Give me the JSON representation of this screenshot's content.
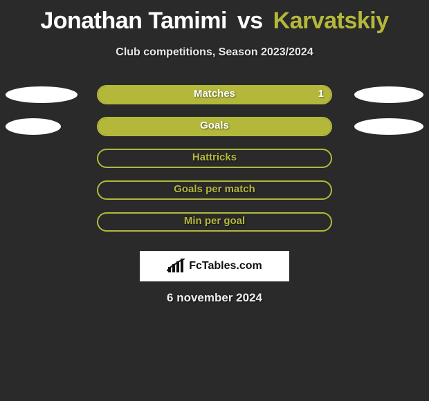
{
  "title": {
    "player1": "Jonathan Tamimi",
    "vs": "vs",
    "player2": "Karvatskiy",
    "player1_color": "#ffffff",
    "player2_color": "#b3b83a"
  },
  "subtitle": "Club competitions, Season 2023/2024",
  "rows": [
    {
      "label": "Matches",
      "value_text": "1",
      "fill_pct": 100,
      "fill_color": "#b3b83a",
      "border_color": "#b3b83a",
      "label_color": "#ffffff",
      "left_ellipse_w": 104,
      "right_ellipse_w": 100,
      "show_left": true,
      "show_right": true
    },
    {
      "label": "Goals",
      "value_text": "",
      "fill_pct": 100,
      "fill_color": "#b3b83a",
      "border_color": "#b3b83a",
      "label_color": "#ffffff",
      "left_ellipse_w": 80,
      "right_ellipse_w": 100,
      "show_left": true,
      "show_right": true
    },
    {
      "label": "Hattricks",
      "value_text": "",
      "fill_pct": 0,
      "fill_color": "#b3b83a",
      "border_color": "#b3b83a",
      "label_color": "#b3b83a",
      "left_ellipse_w": 0,
      "right_ellipse_w": 0,
      "show_left": false,
      "show_right": false
    },
    {
      "label": "Goals per match",
      "value_text": "",
      "fill_pct": 0,
      "fill_color": "#b3b83a",
      "border_color": "#b3b83a",
      "label_color": "#b3b83a",
      "left_ellipse_w": 0,
      "right_ellipse_w": 0,
      "show_left": false,
      "show_right": false
    },
    {
      "label": "Min per goal",
      "value_text": "",
      "fill_pct": 0,
      "fill_color": "#b3b83a",
      "border_color": "#b3b83a",
      "label_color": "#b3b83a",
      "left_ellipse_w": 0,
      "right_ellipse_w": 0,
      "show_left": false,
      "show_right": false
    }
  ],
  "credit": "FcTables.com",
  "date": "6 november 2024",
  "style": {
    "bg": "#2a2a2a",
    "accent": "#b3b83a",
    "text": "#ffffff"
  }
}
